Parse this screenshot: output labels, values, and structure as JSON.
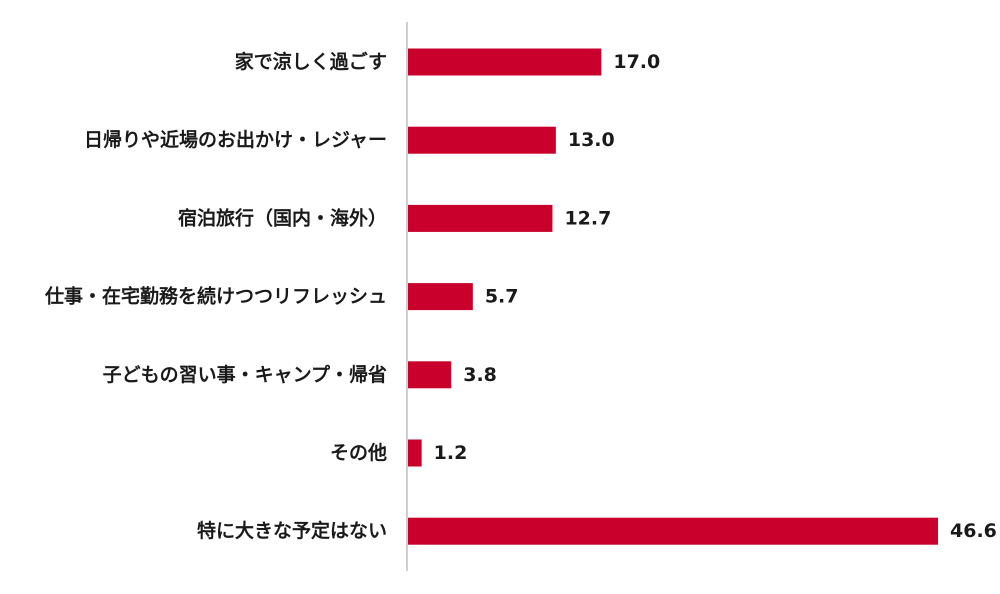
{
  "chart_data": {
    "type": "bar",
    "orientation": "horizontal",
    "categories": [
      "家で涼しく過ごす",
      "日帰りや近場のお出かけ・レジャー",
      "宿泊旅行（国内・海外）",
      "仕事・在宅勤務を続けつつリフレッシュ",
      "子どもの習い事・キャンプ・帰省",
      "その他",
      "特に大きな予定はない"
    ],
    "values": [
      17.0,
      13.0,
      12.7,
      5.7,
      3.8,
      1.2,
      46.6
    ],
    "value_labels": [
      "17.0",
      "13.0",
      "12.7",
      "5.7",
      "3.8",
      "1.2",
      "46.6"
    ],
    "xlim": [
      0,
      46.6
    ],
    "grid": false,
    "bar_color": "#c8002b",
    "axis_color": "#bfbfbf"
  }
}
